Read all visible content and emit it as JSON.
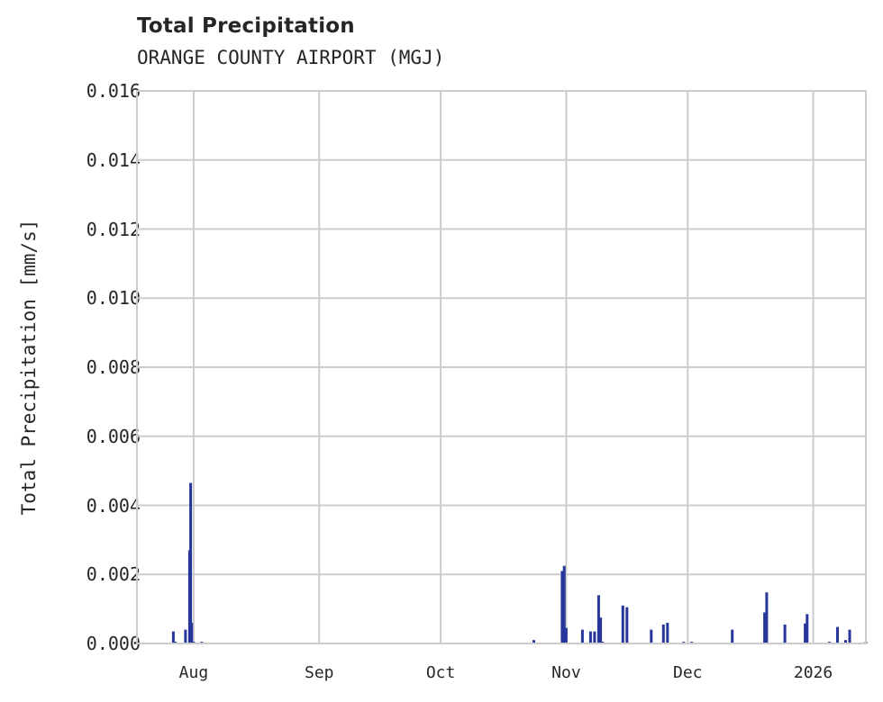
{
  "header": {
    "title": "Total Precipitation",
    "subtitle": "ORANGE COUNTY AIRPORT (MGJ)"
  },
  "axes": {
    "ylabel": "Total Precipitation [mm/s]",
    "yticks": [
      "0.000",
      "0.002",
      "0.004",
      "0.006",
      "0.008",
      "0.010",
      "0.012",
      "0.014",
      "0.016"
    ],
    "xticks": [
      "Aug",
      "Sep",
      "Oct",
      "Nov",
      "Dec",
      "2026"
    ]
  },
  "colors": {
    "bar": "#26369a",
    "grid": "#cccccc",
    "text": "#262626"
  },
  "chart_data": {
    "type": "bar",
    "title": "Total Precipitation",
    "subtitle": "ORANGE COUNTY AIRPORT (MGJ)",
    "xlabel": "",
    "ylabel": "Total Precipitation [mm/s]",
    "ylim": [
      0,
      0.016
    ],
    "xlim": [
      "2025-07-18",
      "2026-01-14"
    ],
    "grid": true,
    "legend": null,
    "x_tick_labels": [
      "Aug",
      "Sep",
      "Oct",
      "Nov",
      "Dec",
      "2026"
    ],
    "y_tick_labels": [
      "0.000",
      "0.002",
      "0.004",
      "0.006",
      "0.008",
      "0.010",
      "0.012",
      "0.014",
      "0.016"
    ],
    "x": [
      "2025-07-27",
      "2025-07-27T12",
      "2025-07-30",
      "2025-07-31",
      "2025-07-31T06",
      "2025-07-31T12",
      "2025-08-01",
      "2025-08-03",
      "2025-10-24",
      "2025-10-31",
      "2025-10-31T12",
      "2025-11-01",
      "2025-11-05",
      "2025-11-07",
      "2025-11-08",
      "2025-11-09",
      "2025-11-09T12",
      "2025-11-10",
      "2025-11-15",
      "2025-11-16",
      "2025-11-22",
      "2025-11-25",
      "2025-11-26",
      "2025-11-30",
      "2025-12-02",
      "2025-12-12",
      "2025-12-20",
      "2025-12-20T12",
      "2025-12-25",
      "2025-12-30",
      "2025-12-30T12",
      "2026-01-05",
      "2026-01-07",
      "2026-01-09",
      "2026-01-10",
      "2026-01-14"
    ],
    "values": [
      0.00035,
      5e-05,
      0.0004,
      0.0027,
      0.00465,
      0.0006,
      5e-05,
      5e-05,
      0.0001,
      0.0021,
      0.00225,
      0.00045,
      0.0004,
      0.00035,
      0.00035,
      0.0014,
      0.00075,
      5e-05,
      0.0011,
      0.00105,
      0.0004,
      0.00055,
      0.0006,
      5e-05,
      5e-05,
      0.0004,
      0.0009,
      0.00148,
      0.00055,
      0.00058,
      0.00085,
      5e-05,
      0.00048,
      0.0001,
      0.0004,
      5e-05
    ],
    "series": [
      {
        "name": "Total Precipitation",
        "color": "#26369a"
      }
    ]
  }
}
